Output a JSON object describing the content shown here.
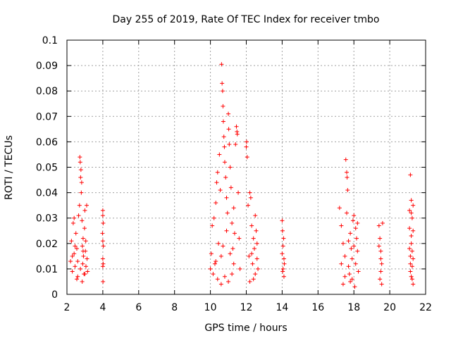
{
  "chart_data": {
    "type": "scatter",
    "title": "Day 255 of 2019, Rate Of TEC Index for receiver tmbo",
    "xlabel": "GPS time / hours",
    "ylabel": "ROTI / TECUs",
    "xlim": [
      2,
      22
    ],
    "ylim": [
      0,
      0.1
    ],
    "x_ticks": [
      "2",
      "4",
      "6",
      "8",
      "10",
      "12",
      "14",
      "16",
      "18",
      "20",
      "22"
    ],
    "y_ticks": [
      "0",
      "0.01",
      "0.02",
      "0.03",
      "0.04",
      "0.05",
      "0.06",
      "0.07",
      "0.08",
      "0.09",
      "0.1"
    ],
    "grid": true,
    "marker": "+",
    "color": "#ff0000",
    "series": [
      {
        "name": "ROTI",
        "points": [
          [
            2.2,
            0.013
          ],
          [
            2.25,
            0.021
          ],
          [
            2.3,
            0.009
          ],
          [
            2.35,
            0.028
          ],
          [
            2.4,
            0.016
          ],
          [
            2.45,
            0.011
          ],
          [
            2.5,
            0.024
          ],
          [
            2.55,
            0.018
          ],
          [
            2.6,
            0.007
          ],
          [
            2.65,
            0.031
          ],
          [
            2.7,
            0.035
          ],
          [
            2.72,
            0.054
          ],
          [
            2.74,
            0.052
          ],
          [
            2.76,
            0.046
          ],
          [
            2.78,
            0.049
          ],
          [
            2.8,
            0.04
          ],
          [
            2.82,
            0.044
          ],
          [
            2.84,
            0.029
          ],
          [
            2.86,
            0.019
          ],
          [
            2.88,
            0.012
          ],
          [
            2.9,
            0.022
          ],
          [
            2.92,
            0.015
          ],
          [
            2.95,
            0.008
          ],
          [
            2.98,
            0.026
          ],
          [
            3.0,
            0.033
          ],
          [
            3.03,
            0.017
          ],
          [
            3.06,
            0.011
          ],
          [
            3.1,
            0.035
          ],
          [
            3.12,
            0.014
          ],
          [
            3.15,
            0.009
          ],
          [
            2.3,
            0.015
          ],
          [
            2.45,
            0.019
          ],
          [
            2.6,
            0.013
          ],
          [
            2.75,
            0.01
          ],
          [
            2.9,
            0.017
          ],
          [
            3.05,
            0.021
          ],
          [
            2.55,
            0.006
          ],
          [
            2.85,
            0.005
          ],
          [
            3.0,
            0.008
          ],
          [
            2.4,
            0.03
          ],
          [
            4.0,
            0.033
          ],
          [
            4.0,
            0.031
          ],
          [
            4.02,
            0.028
          ],
          [
            4.0,
            0.021
          ],
          [
            4.03,
            0.019
          ],
          [
            4.0,
            0.014
          ],
          [
            4.02,
            0.012
          ],
          [
            4.0,
            0.011
          ],
          [
            4.01,
            0.005
          ],
          [
            3.98,
            0.024
          ],
          [
            10.0,
            0.01
          ],
          [
            10.05,
            0.016
          ],
          [
            10.1,
            0.027
          ],
          [
            10.15,
            0.008
          ],
          [
            10.2,
            0.03
          ],
          [
            10.25,
            0.012
          ],
          [
            10.3,
            0.036
          ],
          [
            10.35,
            0.044
          ],
          [
            10.4,
            0.048
          ],
          [
            10.45,
            0.02
          ],
          [
            10.5,
            0.055
          ],
          [
            10.55,
            0.041
          ],
          [
            10.6,
            0.015
          ],
          [
            10.62,
            0.0905
          ],
          [
            10.65,
            0.083
          ],
          [
            10.68,
            0.08
          ],
          [
            10.7,
            0.074
          ],
          [
            10.72,
            0.068
          ],
          [
            10.75,
            0.062
          ],
          [
            10.78,
            0.058
          ],
          [
            10.8,
            0.052
          ],
          [
            10.85,
            0.046
          ],
          [
            10.9,
            0.038
          ],
          [
            10.95,
            0.032
          ],
          [
            11.0,
            0.071
          ],
          [
            11.02,
            0.065
          ],
          [
            11.05,
            0.059
          ],
          [
            11.1,
            0.05
          ],
          [
            11.15,
            0.042
          ],
          [
            11.2,
            0.028
          ],
          [
            11.25,
            0.018
          ],
          [
            11.3,
            0.012
          ],
          [
            11.35,
            0.024
          ],
          [
            11.4,
            0.059
          ],
          [
            11.45,
            0.066
          ],
          [
            11.48,
            0.064
          ],
          [
            11.5,
            0.063
          ],
          [
            11.55,
            0.04
          ],
          [
            11.6,
            0.022
          ],
          [
            11.65,
            0.01
          ],
          [
            10.4,
            0.006
          ],
          [
            10.6,
            0.004
          ],
          [
            10.8,
            0.007
          ],
          [
            11.0,
            0.005
          ],
          [
            11.2,
            0.008
          ],
          [
            10.3,
            0.013
          ],
          [
            10.7,
            0.019
          ],
          [
            10.9,
            0.025
          ],
          [
            11.1,
            0.016
          ],
          [
            11.3,
            0.034
          ],
          [
            12.0,
            0.058
          ],
          [
            12.02,
            0.06
          ],
          [
            12.05,
            0.054
          ],
          [
            12.1,
            0.035
          ],
          [
            12.15,
            0.015
          ],
          [
            12.2,
            0.04
          ],
          [
            12.25,
            0.038
          ],
          [
            12.3,
            0.027
          ],
          [
            12.35,
            0.012
          ],
          [
            12.4,
            0.022
          ],
          [
            12.45,
            0.018
          ],
          [
            12.5,
            0.008
          ],
          [
            12.55,
            0.025
          ],
          [
            12.6,
            0.014
          ],
          [
            12.65,
            0.01
          ],
          [
            12.2,
            0.005
          ],
          [
            12.4,
            0.006
          ],
          [
            12.6,
            0.02
          ],
          [
            12.3,
            0.016
          ],
          [
            12.5,
            0.031
          ],
          [
            14.0,
            0.029
          ],
          [
            14.02,
            0.025
          ],
          [
            14.05,
            0.019
          ],
          [
            14.1,
            0.014
          ],
          [
            14.12,
            0.012
          ],
          [
            14.05,
            0.01
          ],
          [
            14.1,
            0.007
          ],
          [
            14.0,
            0.016
          ],
          [
            14.08,
            0.022
          ],
          [
            14.03,
            0.009
          ],
          [
            17.2,
            0.034
          ],
          [
            17.3,
            0.027
          ],
          [
            17.4,
            0.02
          ],
          [
            17.5,
            0.015
          ],
          [
            17.55,
            0.053
          ],
          [
            17.6,
            0.048
          ],
          [
            17.62,
            0.046
          ],
          [
            17.65,
            0.041
          ],
          [
            17.7,
            0.011
          ],
          [
            17.75,
            0.008
          ],
          [
            17.8,
            0.024
          ],
          [
            17.85,
            0.018
          ],
          [
            17.9,
            0.006
          ],
          [
            17.95,
            0.029
          ],
          [
            18.0,
            0.031
          ],
          [
            18.05,
            0.003
          ],
          [
            18.1,
            0.012
          ],
          [
            18.15,
            0.022
          ],
          [
            18.2,
            0.017
          ],
          [
            18.25,
            0.009
          ],
          [
            17.3,
            0.012
          ],
          [
            17.5,
            0.007
          ],
          [
            17.7,
            0.021
          ],
          [
            17.9,
            0.014
          ],
          [
            18.1,
            0.026
          ],
          [
            17.4,
            0.004
          ],
          [
            17.6,
            0.032
          ],
          [
            17.8,
            0.005
          ],
          [
            18.0,
            0.019
          ],
          [
            18.2,
            0.028
          ],
          [
            19.4,
            0.027
          ],
          [
            19.45,
            0.022
          ],
          [
            19.5,
            0.017
          ],
          [
            19.55,
            0.012
          ],
          [
            19.5,
            0.009
          ],
          [
            19.45,
            0.006
          ],
          [
            19.55,
            0.004
          ],
          [
            19.6,
            0.028
          ],
          [
            19.5,
            0.014
          ],
          [
            19.4,
            0.019
          ],
          [
            21.1,
            0.033
          ],
          [
            21.15,
            0.047
          ],
          [
            21.2,
            0.037
          ],
          [
            21.25,
            0.03
          ],
          [
            21.3,
            0.025
          ],
          [
            21.2,
            0.02
          ],
          [
            21.15,
            0.015
          ],
          [
            21.25,
            0.011
          ],
          [
            21.2,
            0.007
          ],
          [
            21.3,
            0.004
          ],
          [
            21.1,
            0.018
          ],
          [
            21.2,
            0.023
          ],
          [
            21.15,
            0.009
          ],
          [
            21.3,
            0.014
          ],
          [
            21.25,
            0.006
          ],
          [
            21.1,
            0.026
          ],
          [
            21.2,
            0.032
          ],
          [
            21.15,
            0.012
          ],
          [
            21.3,
            0.035
          ],
          [
            21.25,
            0.017
          ]
        ]
      }
    ]
  }
}
